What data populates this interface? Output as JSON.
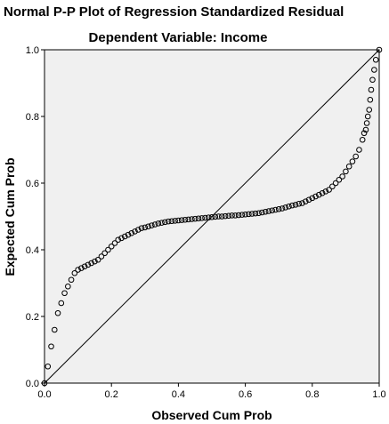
{
  "chart_data": {
    "type": "scatter",
    "title": "Normal P-P Plot of Regression Standardized Residual",
    "subtitle": "Dependent Variable: Income",
    "xlabel": "Observed Cum Prob",
    "ylabel": "Expected Cum Prob",
    "xlim": [
      0,
      1
    ],
    "ylim": [
      0,
      1
    ],
    "xticks": [
      "0.0",
      "0.2",
      "0.4",
      "0.6",
      "0.8",
      "1.0"
    ],
    "yticks": [
      "0.0",
      "0.2",
      "0.4",
      "0.6",
      "0.8",
      "1.0"
    ],
    "tick_values": [
      0,
      0.2,
      0.4,
      0.6,
      0.8,
      1.0
    ],
    "reference_line": [
      [
        0,
        0
      ],
      [
        1,
        1
      ]
    ],
    "grid": false,
    "marker": "open-circle",
    "plot_background": "#f0f0f0",
    "marker_color": "#000000",
    "x": [
      0.0,
      0.01,
      0.02,
      0.03,
      0.04,
      0.05,
      0.06,
      0.07,
      0.08,
      0.09,
      0.1,
      0.11,
      0.12,
      0.13,
      0.14,
      0.15,
      0.16,
      0.17,
      0.18,
      0.19,
      0.2,
      0.21,
      0.22,
      0.23,
      0.24,
      0.25,
      0.26,
      0.27,
      0.28,
      0.29,
      0.3,
      0.31,
      0.32,
      0.33,
      0.34,
      0.35,
      0.36,
      0.37,
      0.38,
      0.39,
      0.4,
      0.41,
      0.42,
      0.43,
      0.44,
      0.45,
      0.46,
      0.47,
      0.48,
      0.49,
      0.5,
      0.51,
      0.52,
      0.53,
      0.54,
      0.55,
      0.56,
      0.57,
      0.58,
      0.59,
      0.6,
      0.61,
      0.62,
      0.63,
      0.64,
      0.65,
      0.66,
      0.67,
      0.68,
      0.69,
      0.7,
      0.71,
      0.72,
      0.73,
      0.74,
      0.75,
      0.76,
      0.77,
      0.78,
      0.79,
      0.8,
      0.81,
      0.82,
      0.83,
      0.84,
      0.85,
      0.86,
      0.87,
      0.88,
      0.89,
      0.9,
      0.91,
      0.92,
      0.93,
      0.94,
      0.95,
      0.955,
      0.96,
      0.963,
      0.966,
      0.97,
      0.973,
      0.976,
      0.98,
      0.985,
      0.99,
      1.0
    ],
    "y": [
      0.0,
      0.05,
      0.11,
      0.16,
      0.21,
      0.24,
      0.27,
      0.29,
      0.31,
      0.33,
      0.34,
      0.345,
      0.35,
      0.355,
      0.36,
      0.365,
      0.37,
      0.38,
      0.39,
      0.4,
      0.41,
      0.42,
      0.43,
      0.435,
      0.44,
      0.445,
      0.45,
      0.455,
      0.46,
      0.465,
      0.467,
      0.47,
      0.473,
      0.476,
      0.479,
      0.481,
      0.483,
      0.485,
      0.486,
      0.487,
      0.488,
      0.489,
      0.49,
      0.491,
      0.492,
      0.493,
      0.494,
      0.495,
      0.496,
      0.497,
      0.498,
      0.499,
      0.5,
      0.5,
      0.501,
      0.502,
      0.503,
      0.503,
      0.504,
      0.505,
      0.506,
      0.507,
      0.508,
      0.509,
      0.51,
      0.512,
      0.514,
      0.516,
      0.518,
      0.52,
      0.522,
      0.524,
      0.527,
      0.53,
      0.533,
      0.535,
      0.538,
      0.54,
      0.545,
      0.55,
      0.555,
      0.56,
      0.565,
      0.57,
      0.575,
      0.58,
      0.59,
      0.6,
      0.61,
      0.62,
      0.635,
      0.65,
      0.665,
      0.68,
      0.7,
      0.73,
      0.75,
      0.76,
      0.78,
      0.8,
      0.82,
      0.85,
      0.88,
      0.91,
      0.94,
      0.97,
      1.0
    ]
  }
}
